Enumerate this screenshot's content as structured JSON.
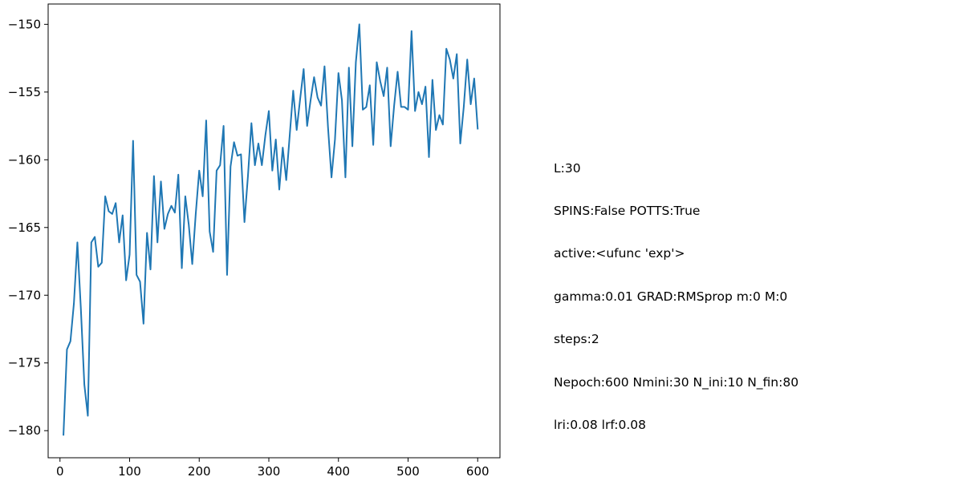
{
  "chart_data": {
    "type": "line",
    "title": "",
    "xlabel": "",
    "ylabel": "",
    "xlim": [
      -17,
      632
    ],
    "ylim": [
      -182.0,
      -148.5
    ],
    "x_ticks": [
      0,
      100,
      200,
      300,
      400,
      500,
      600
    ],
    "y_ticks": [
      -180,
      -175,
      -170,
      -165,
      -160,
      -155,
      -150
    ],
    "x_tick_labels": [
      "0",
      "100",
      "200",
      "300",
      "400",
      "500",
      "600"
    ],
    "y_tick_labels": [
      "−180",
      "−175",
      "−170",
      "−165",
      "−160",
      "−155",
      "−150"
    ],
    "grid": false,
    "line_color": "#1f77b4",
    "series": [
      {
        "x": [
          5,
          10,
          15,
          20,
          25,
          30,
          35,
          40,
          45,
          50,
          55,
          60,
          65,
          70,
          75,
          80,
          85,
          90,
          95,
          100,
          105,
          110,
          115,
          120,
          125,
          130,
          135,
          140,
          145,
          150,
          155,
          160,
          165,
          170,
          175,
          180,
          185,
          190,
          195,
          200,
          205,
          210,
          215,
          220,
          225,
          230,
          235,
          240,
          245,
          250,
          255,
          260,
          265,
          270,
          275,
          280,
          285,
          290,
          295,
          300,
          305,
          310,
          315,
          320,
          325,
          330,
          335,
          340,
          345,
          350,
          355,
          360,
          365,
          370,
          375,
          380,
          385,
          390,
          395,
          400,
          405,
          410,
          415,
          420,
          425,
          430,
          435,
          440,
          445,
          450,
          455,
          460,
          465,
          470,
          475,
          480,
          485,
          490,
          495,
          500,
          505,
          510,
          515,
          520,
          525,
          530,
          535,
          540,
          545,
          550,
          555,
          560,
          565,
          570,
          575,
          580,
          585,
          590,
          595,
          600
        ],
        "y": [
          -180.3,
          -174.0,
          -173.4,
          -170.6,
          -166.1,
          -171.0,
          -176.6,
          -178.9,
          -166.1,
          -165.7,
          -167.9,
          -167.6,
          -162.7,
          -163.8,
          -164.0,
          -163.2,
          -166.1,
          -164.1,
          -168.9,
          -167.0,
          -158.6,
          -168.5,
          -169.0,
          -172.1,
          -165.4,
          -168.1,
          -161.2,
          -166.1,
          -161.6,
          -165.1,
          -164.0,
          -163.4,
          -163.9,
          -161.1,
          -168.0,
          -162.7,
          -164.8,
          -167.7,
          -164.0,
          -160.8,
          -162.7,
          -157.1,
          -165.3,
          -166.8,
          -160.8,
          -160.4,
          -157.5,
          -168.5,
          -160.5,
          -158.7,
          -159.7,
          -159.6,
          -164.6,
          -161.2,
          -157.3,
          -160.4,
          -158.8,
          -160.4,
          -158.2,
          -156.4,
          -160.8,
          -158.5,
          -162.2,
          -159.1,
          -161.5,
          -158.2,
          -154.9,
          -157.8,
          -155.5,
          -153.3,
          -157.5,
          -155.6,
          -153.9,
          -155.4,
          -156.0,
          -153.1,
          -157.6,
          -161.3,
          -158.5,
          -153.6,
          -155.6,
          -161.3,
          -153.2,
          -159.0,
          -152.8,
          -150.0,
          -156.3,
          -156.1,
          -154.5,
          -158.9,
          -152.8,
          -154.2,
          -155.3,
          -153.2,
          -159.0,
          -156.0,
          -153.5,
          -156.1,
          -156.1,
          -156.3,
          -150.5,
          -156.4,
          -155.0,
          -155.9,
          -154.6,
          -159.8,
          -154.1,
          -157.8,
          -156.7,
          -157.4,
          -151.8,
          -152.6,
          -154.0,
          -152.2,
          -158.8,
          -156.1,
          -152.6,
          -155.9,
          -154.0,
          -157.7
        ]
      }
    ]
  },
  "info": {
    "lines": [
      "L:30",
      "SPINS:False POTTS:True",
      "active:<ufunc 'exp'>",
      "gamma:0.01 GRAD:RMSprop m:0 M:0",
      "steps:2",
      "Nepoch:600 Nmini:30 N_ini:10 N_fin:80",
      "lri:0.08 lrf:0.08"
    ]
  }
}
